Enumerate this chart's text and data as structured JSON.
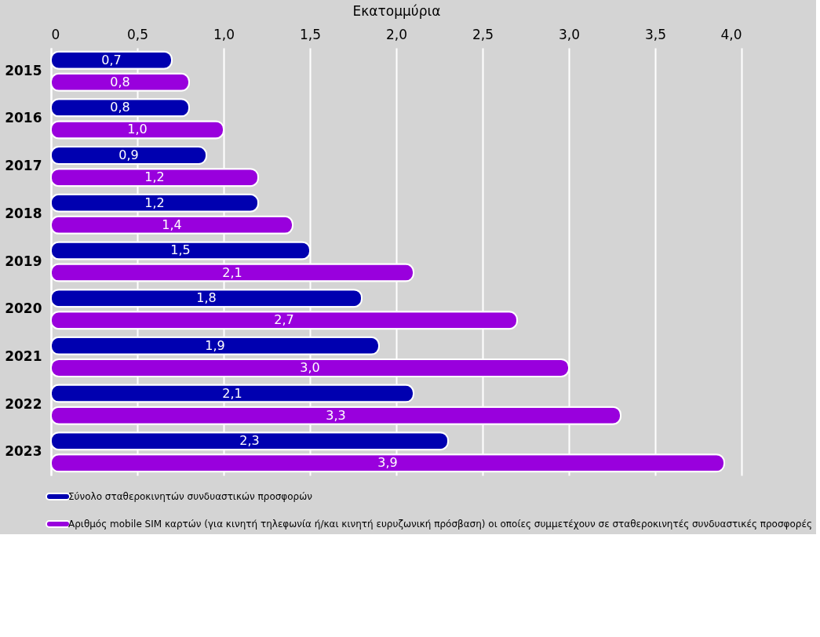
{
  "chart_data": {
    "type": "bar",
    "orientation": "horizontal",
    "xlabel": "Εκατομμύρια",
    "categories": [
      "2015",
      "2016",
      "2017",
      "2018",
      "2019",
      "2020",
      "2021",
      "2022",
      "2023"
    ],
    "series": [
      {
        "name": "Σύνολο σταθεροκινητών συνδυαστικών προσφορών",
        "color": "#0000b0",
        "values": [
          0.7,
          0.8,
          0.9,
          1.2,
          1.5,
          1.8,
          1.9,
          2.1,
          2.3
        ],
        "value_labels": [
          "0,7",
          "0,8",
          "0,9",
          "1,2",
          "1,5",
          "1,8",
          "1,9",
          "2,1",
          "2,3"
        ]
      },
      {
        "name": "Αριθμός mobile SIM καρτών (για κινητή τηλεφωνία ή/και κινητή ευρυζωνική πρόσβαση) οι οποίες συμμετέχουν σε σταθεροκινητές συνδυαστικές προσφορές",
        "color": "#9900dd",
        "values": [
          0.8,
          1.0,
          1.2,
          1.4,
          2.1,
          2.7,
          3.0,
          3.3,
          3.9
        ],
        "value_labels": [
          "0,8",
          "1,0",
          "1,2",
          "1,4",
          "2,1",
          "2,7",
          "3,0",
          "3,3",
          "3,9"
        ]
      }
    ],
    "xlim": [
      0,
      4
    ],
    "xticks": [
      0,
      {
        "value": 0.5,
        "label": "0,5"
      },
      {
        "value": 1,
        "label": "1,0"
      },
      {
        "value": 1.5,
        "label": "1,5"
      },
      {
        "value": 2,
        "label": "2,0"
      },
      {
        "value": 2.5,
        "label": "2,5"
      },
      {
        "value": 3,
        "label": "3,0"
      },
      {
        "value": 3.5,
        "label": "3,5"
      },
      {
        "value": 4,
        "label": "4,0"
      }
    ],
    "grid": "x",
    "legend": "bottom"
  }
}
